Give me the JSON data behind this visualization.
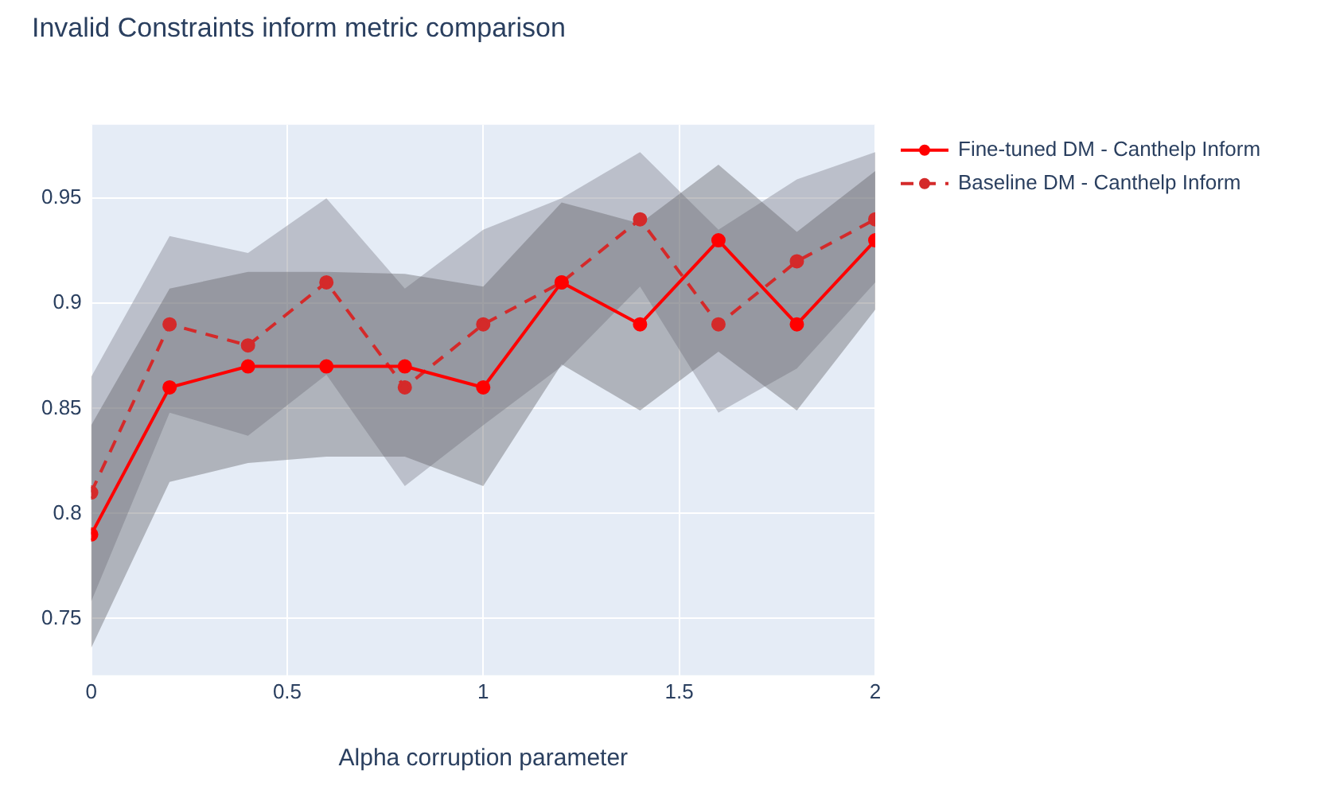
{
  "chart_data": {
    "type": "line",
    "title": "Invalid Constraints inform metric comparison",
    "xlabel": "Alpha corruption parameter",
    "x": [
      0,
      0.2,
      0.4,
      0.6,
      0.8,
      1,
      1.2,
      1.4,
      1.6,
      1.8,
      2
    ],
    "series": [
      {
        "name": "Fine-tuned DM - Canthelp Inform",
        "color": "#ff0000",
        "line_style": "solid",
        "values": [
          0.79,
          0.86,
          0.87,
          0.87,
          0.87,
          0.86,
          0.91,
          0.89,
          0.93,
          0.89,
          0.93
        ],
        "lower": [
          0.736,
          0.815,
          0.824,
          0.827,
          0.827,
          0.813,
          0.871,
          0.849,
          0.877,
          0.849,
          0.897
        ],
        "upper": [
          0.842,
          0.907,
          0.915,
          0.915,
          0.914,
          0.908,
          0.948,
          0.938,
          0.966,
          0.934,
          0.963
        ]
      },
      {
        "name": "Baseline DM - Canthelp Inform",
        "color": "#d42a2a",
        "line_style": "dashed",
        "values": [
          0.81,
          0.89,
          0.88,
          0.91,
          0.86,
          0.89,
          0.91,
          0.94,
          0.89,
          0.92,
          0.94
        ],
        "lower": [
          0.758,
          0.848,
          0.837,
          0.866,
          0.813,
          0.842,
          0.87,
          0.908,
          0.848,
          0.869,
          0.91
        ],
        "upper": [
          0.865,
          0.932,
          0.924,
          0.95,
          0.907,
          0.935,
          0.95,
          0.972,
          0.935,
          0.959,
          0.972
        ]
      }
    ],
    "xlim": [
      0,
      2
    ],
    "xticks": [
      0,
      0.5,
      1,
      1.5,
      2
    ],
    "ylim": [
      0.723,
      0.985
    ],
    "yticks": [
      0.75,
      0.8,
      0.85,
      0.9,
      0.95
    ],
    "grid": true,
    "legend": "top right",
    "marker": "circle"
  }
}
